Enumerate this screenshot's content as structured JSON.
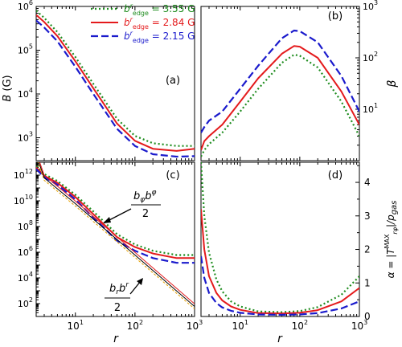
{
  "colors": {
    "b355": "#1e8c1e",
    "b284": "#e41a1c",
    "b215": "#1a1acc",
    "thin_black": "#000000",
    "thin_orange": "#e6a100"
  },
  "legend": {
    "entries": [
      {
        "prefix": "b",
        "sup": "r",
        "sub": "edge",
        "value": " = 3.55 G",
        "style": "dotted",
        "color_key": "b355"
      },
      {
        "prefix": "b",
        "sup": "r",
        "sub": "edge",
        "value": " = 2.84 G",
        "style": "solid",
        "color_key": "b284"
      },
      {
        "prefix": "b",
        "sup": "r",
        "sub": "edge",
        "value": " = 2.15 G",
        "style": "dashed",
        "color_key": "b215"
      }
    ]
  },
  "panels": {
    "a": {
      "label": "(a)",
      "ylabel": "B (G)",
      "y_ticks": [
        "10",
        "10",
        "10",
        "10"
      ],
      "y_exp": [
        "3",
        "4",
        "5",
        "6"
      ]
    },
    "b": {
      "label": "(b)",
      "ylabel": "β",
      "y_ticks": [
        "10",
        "10",
        "10"
      ],
      "y_exp": [
        "1",
        "2",
        "3"
      ]
    },
    "c": {
      "label": "(c)",
      "y_ticks": [
        "10",
        "10",
        "10",
        "10",
        "10",
        "10"
      ],
      "y_exp": [
        "2",
        "4",
        "6",
        "8",
        "10",
        "12"
      ],
      "annot_bphi_num": "b",
      "annot_bphi_num2": "b",
      "annot_bphi_den": "2",
      "annot_br_num": "b",
      "annot_br_num2": "b",
      "annot_br_den": "2"
    },
    "d": {
      "label": "(d)",
      "ylabel_main": "α = |T",
      "ylabel_sup": "MAX",
      "ylabel_sub": "rφ",
      "ylabel_tail": "|/p",
      "ylabel_gas": "gas",
      "y_ticks": [
        "0",
        "1",
        "2",
        "3",
        "4"
      ]
    }
  },
  "x_axis": {
    "xlabel": "r",
    "x_ticks": [
      "10",
      "10",
      "10"
    ],
    "x_exp": [
      "1",
      "2",
      "3"
    ]
  },
  "chart_data": [
    {
      "id": "a",
      "type": "line",
      "xscale": "log",
      "yscale": "log",
      "xlim": [
        2.2,
        1000
      ],
      "ylim": [
        300,
        1000000
      ],
      "xlabel": "r",
      "ylabel": "B (G)",
      "series": [
        {
          "name": "b^r_edge = 3.55 G",
          "x": [
            2.2,
            3,
            5,
            10,
            20,
            50,
            100,
            200,
            500,
            1000
          ],
          "y": [
            800000,
            550000,
            260000,
            70000,
            17000,
            2700,
            1100,
            750,
            650,
            650
          ]
        },
        {
          "name": "b^r_edge = 2.84 G",
          "x": [
            2.2,
            3,
            5,
            10,
            20,
            50,
            100,
            200,
            500,
            1000
          ],
          "y": [
            640000,
            440000,
            210000,
            56000,
            13500,
            2100,
            850,
            560,
            500,
            560
          ]
        },
        {
          "name": "b^r_edge = 2.15 G",
          "x": [
            2.2,
            3,
            5,
            10,
            20,
            50,
            100,
            200,
            500,
            1000
          ],
          "y": [
            480000,
            330000,
            160000,
            42000,
            10000,
            1600,
            650,
            420,
            370,
            380
          ]
        }
      ]
    },
    {
      "id": "b",
      "type": "line",
      "xscale": "log",
      "yscale": "log",
      "xlim": [
        2.2,
        1000
      ],
      "ylim": [
        1,
        1000
      ],
      "xlabel": "r",
      "ylabel": "β",
      "series": [
        {
          "name": "b^r_edge = 3.55 G",
          "x": [
            2.2,
            2.5,
            3,
            5,
            10,
            20,
            50,
            80,
            100,
            200,
            500,
            1000
          ],
          "y": [
            1.2,
            1.6,
            2.1,
            3.5,
            9,
            25,
            80,
            115,
            110,
            65,
            14,
            3
          ]
        },
        {
          "name": "b^r_edge = 2.84 G",
          "x": [
            2.2,
            2.5,
            3,
            5,
            10,
            20,
            50,
            80,
            100,
            200,
            500,
            1000
          ],
          "y": [
            1.6,
            2.4,
            3,
            5,
            14,
            40,
            120,
            170,
            165,
            100,
            22,
            5
          ]
        },
        {
          "name": "b^r_edge = 2.15 G",
          "x": [
            2.2,
            2.5,
            3,
            5,
            10,
            20,
            50,
            80,
            100,
            200,
            500,
            1000
          ],
          "y": [
            3.5,
            4.5,
            6,
            9,
            25,
            70,
            240,
            340,
            330,
            200,
            44,
            9
          ]
        }
      ]
    },
    {
      "id": "c",
      "type": "line",
      "xscale": "log",
      "yscale": "log",
      "xlim": [
        2.2,
        1000
      ],
      "ylim": [
        10,
        10000000000000.0
      ],
      "xlabel": "r",
      "series": [
        {
          "name": "b_φ b^φ / 2 (3.55 G)",
          "x": [
            2.2,
            3,
            5,
            10,
            20,
            50,
            100,
            200,
            500,
            1000
          ],
          "y": [
            5000000000000.0,
            1200000000000.0,
            350000000000.0,
            30000000000.0,
            1500000000.0,
            25000000.0,
            4000000.0,
            1300000.0,
            600000.0,
            600000.0
          ]
        },
        {
          "name": "b_φ b^φ / 2 (2.84 G)",
          "x": [
            2.2,
            3,
            5,
            10,
            20,
            50,
            100,
            200,
            500,
            1000
          ],
          "y": [
            4000000000000.0,
            900000000000.0,
            250000000000.0,
            20000000000.0,
            900000000.0,
            15000000.0,
            2500000.0,
            800000.0,
            350000.0,
            350000.0
          ]
        },
        {
          "name": "b_φ b^φ / 2 (2.15 G)",
          "x": [
            2.2,
            3,
            5,
            10,
            20,
            50,
            100,
            200,
            500,
            1000
          ],
          "y": [
            3000000000000.0,
            700000000000.0,
            180000000000.0,
            13000000000.0,
            500000000.0,
            8000000.0,
            1300000.0,
            350000.0,
            150000.0,
            150000.0
          ]
        },
        {
          "name": "b_r b^r / 2",
          "x": [
            2.2,
            3,
            10,
            100,
            1000
          ],
          "y": [
            40000000000000.0,
            600000000000.0,
            6000000000.0,
            600000.0,
            60
          ]
        }
      ]
    },
    {
      "id": "d",
      "type": "line",
      "xscale": "log",
      "yscale": "linear",
      "xlim": [
        2.2,
        1000
      ],
      "ylim": [
        0,
        4.6
      ],
      "xlabel": "r",
      "ylabel": "α = |T^MAX_rφ|/p_gas",
      "series": [
        {
          "name": "b^r_edge = 3.55 G",
          "x": [
            2.2,
            2.5,
            3,
            4,
            5,
            7,
            10,
            20,
            50,
            100,
            200,
            500,
            1000
          ],
          "y": [
            4.6,
            3.0,
            1.9,
            1.1,
            0.75,
            0.45,
            0.3,
            0.15,
            0.13,
            0.16,
            0.28,
            0.65,
            1.2
          ]
        },
        {
          "name": "b^r_edge = 2.84 G",
          "x": [
            2.2,
            2.5,
            3,
            4,
            5,
            7,
            10,
            20,
            50,
            100,
            200,
            500,
            1000
          ],
          "y": [
            3.2,
            2.0,
            1.2,
            0.7,
            0.48,
            0.3,
            0.2,
            0.1,
            0.09,
            0.11,
            0.19,
            0.45,
            0.85
          ]
        },
        {
          "name": "b^r_edge = 2.15 G",
          "x": [
            2.2,
            2.5,
            3,
            4,
            5,
            7,
            10,
            20,
            50,
            100,
            200,
            500,
            1000
          ],
          "y": [
            1.8,
            1.15,
            0.7,
            0.4,
            0.27,
            0.17,
            0.11,
            0.06,
            0.05,
            0.06,
            0.1,
            0.24,
            0.45
          ]
        }
      ]
    }
  ]
}
